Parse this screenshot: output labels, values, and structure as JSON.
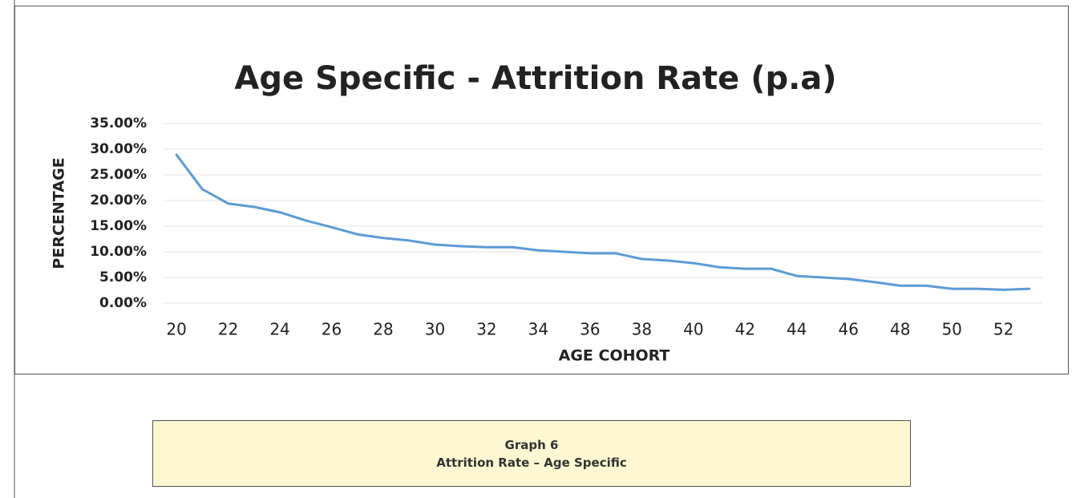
{
  "chart_data": {
    "type": "line",
    "title": "Age Specific - Attrition Rate (p.a)",
    "x_label": "AGE COHORT",
    "y_label": "PERCENTAGE",
    "x": [
      20,
      21,
      22,
      23,
      24,
      25,
      26,
      27,
      28,
      29,
      30,
      31,
      32,
      33,
      34,
      35,
      36,
      37,
      38,
      39,
      40,
      41,
      42,
      43,
      44,
      45,
      46,
      47,
      48,
      49,
      50,
      51,
      52,
      53
    ],
    "values": [
      28.9,
      22.2,
      19.4,
      18.75,
      17.7,
      16.1,
      14.8,
      13.4,
      12.7,
      12.2,
      11.4,
      11.1,
      10.9,
      10.9,
      10.3,
      10.0,
      9.7,
      9.7,
      8.6,
      8.3,
      7.8,
      7.0,
      6.7,
      6.7,
      5.3,
      5.0,
      4.7,
      4.1,
      3.4,
      3.4,
      2.8,
      2.8,
      2.6,
      2.8
    ],
    "color": "#5b9bd5",
    "xlim": [
      19.5,
      53.5
    ],
    "xticks": [
      20,
      22,
      24,
      26,
      28,
      30,
      32,
      34,
      36,
      38,
      40,
      42,
      44,
      46,
      48,
      50,
      52
    ],
    "ylim": [
      0,
      35
    ],
    "yticks": [
      {
        "value": 0,
        "label": "0.00%"
      },
      {
        "value": 5,
        "label": "5.00%"
      },
      {
        "value": 10,
        "label": "10.00%"
      },
      {
        "value": 15,
        "label": "15.00%"
      },
      {
        "value": 20,
        "label": "20.00%"
      },
      {
        "value": 25,
        "label": "25.00%"
      },
      {
        "value": 30,
        "label": "30.00%"
      },
      {
        "value": 35,
        "label": "35.00%"
      }
    ],
    "grid": true
  },
  "caption": [
    "Graph 6",
    "Attrition Rate – Age Specific"
  ]
}
